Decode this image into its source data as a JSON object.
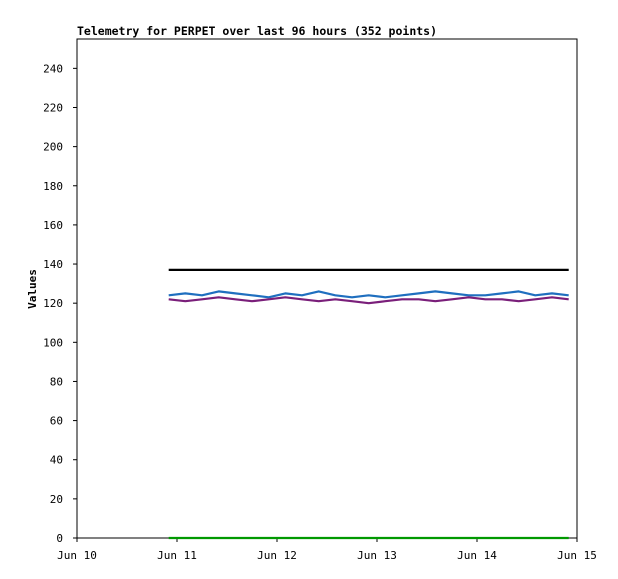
{
  "chart_data": {
    "type": "line",
    "title": "Telemetry for PERPET over last 96 hours (352 points)",
    "xlabel": "",
    "ylabel": "Values",
    "x_ticks": [
      "Jun 10",
      "Jun 11",
      "Jun 12",
      "Jun 13",
      "Jun 14",
      "Jun 15"
    ],
    "x_start": "Jun 10",
    "x_end": "Jun 15",
    "ylim": [
      0,
      255
    ],
    "y_ticks": [
      0,
      20,
      40,
      60,
      80,
      100,
      120,
      140,
      160,
      180,
      200,
      220,
      240
    ],
    "grid": false,
    "legend": "none",
    "series": [
      {
        "color": "#000000",
        "x": [
          "Jun 10 22:00",
          "Jun 11 00:00",
          "Jun 11 12:00",
          "Jun 12 00:00",
          "Jun 12 12:00",
          "Jun 13 00:00",
          "Jun 13 12:00",
          "Jun 14 00:00",
          "Jun 14 12:00",
          "Jun 14 22:00"
        ],
        "values": [
          137,
          137,
          137,
          137,
          137,
          137,
          137,
          137,
          137,
          137
        ]
      },
      {
        "color": "#1f6fbf",
        "x": [
          "Jun 10 22:00",
          "Jun 11 02:00",
          "Jun 11 06:00",
          "Jun 11 10:00",
          "Jun 11 14:00",
          "Jun 11 18:00",
          "Jun 11 22:00",
          "Jun 12 02:00",
          "Jun 12 06:00",
          "Jun 12 10:00",
          "Jun 12 14:00",
          "Jun 12 18:00",
          "Jun 12 22:00",
          "Jun 13 02:00",
          "Jun 13 06:00",
          "Jun 13 10:00",
          "Jun 13 14:00",
          "Jun 13 18:00",
          "Jun 13 22:00",
          "Jun 14 02:00",
          "Jun 14 06:00",
          "Jun 14 10:00",
          "Jun 14 14:00",
          "Jun 14 18:00",
          "Jun 14 22:00"
        ],
        "values": [
          124,
          125,
          124,
          126,
          125,
          124,
          123,
          125,
          124,
          126,
          124,
          123,
          124,
          123,
          124,
          125,
          126,
          125,
          124,
          124,
          125,
          126,
          124,
          125,
          124
        ]
      },
      {
        "color": "#7a1f7a",
        "x": [
          "Jun 10 22:00",
          "Jun 11 02:00",
          "Jun 11 06:00",
          "Jun 11 10:00",
          "Jun 11 14:00",
          "Jun 11 18:00",
          "Jun 11 22:00",
          "Jun 12 02:00",
          "Jun 12 06:00",
          "Jun 12 10:00",
          "Jun 12 14:00",
          "Jun 12 18:00",
          "Jun 12 22:00",
          "Jun 13 02:00",
          "Jun 13 06:00",
          "Jun 13 10:00",
          "Jun 13 14:00",
          "Jun 13 18:00",
          "Jun 13 22:00",
          "Jun 14 02:00",
          "Jun 14 06:00",
          "Jun 14 10:00",
          "Jun 14 14:00",
          "Jun 14 18:00",
          "Jun 14 22:00"
        ],
        "values": [
          122,
          121,
          122,
          123,
          122,
          121,
          122,
          123,
          122,
          121,
          122,
          121,
          120,
          121,
          122,
          122,
          121,
          122,
          123,
          122,
          122,
          121,
          122,
          123,
          122
        ]
      },
      {
        "color": "#009900",
        "x": [
          "Jun 10 22:00",
          "Jun 14 22:00"
        ],
        "values": [
          0,
          0
        ]
      }
    ]
  }
}
